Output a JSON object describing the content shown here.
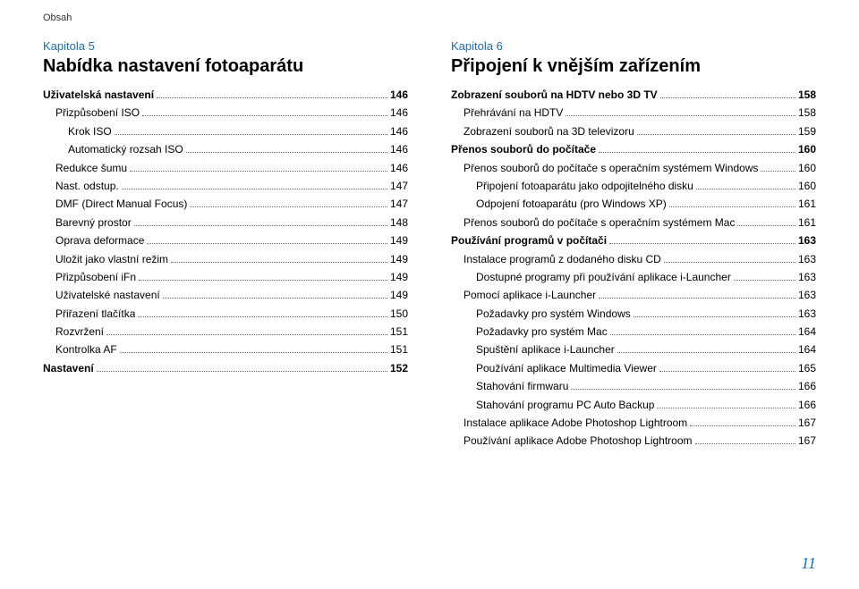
{
  "header": "Obsah",
  "pageNumber": "11",
  "colors": {
    "link": "#1a6fb0",
    "text": "#000000",
    "dots": "#666666",
    "bg": "#ffffff"
  },
  "left": {
    "chapter": "Kapitola 5",
    "title": "Nabídka nastavení fotoaparátu",
    "items": [
      {
        "label": "Uživatelská nastavení",
        "page": "146",
        "level": 0,
        "bold": true
      },
      {
        "label": "Přizpůsobení ISO",
        "page": "146",
        "level": 1
      },
      {
        "label": "Krok ISO",
        "page": "146",
        "level": 2
      },
      {
        "label": "Automatický rozsah ISO",
        "page": "146",
        "level": 2
      },
      {
        "label": "Redukce šumu",
        "page": "146",
        "level": 1
      },
      {
        "label": "Nast. odstup.",
        "page": "147",
        "level": 1
      },
      {
        "label": "DMF (Direct Manual Focus)",
        "page": "147",
        "level": 1
      },
      {
        "label": "Barevný prostor",
        "page": "148",
        "level": 1
      },
      {
        "label": "Oprava deformace",
        "page": "149",
        "level": 1
      },
      {
        "label": "Uložit jako vlastní režim",
        "page": "149",
        "level": 1
      },
      {
        "label": "Přizpůsobení iFn",
        "page": "149",
        "level": 1
      },
      {
        "label": "Uživatelské nastavení",
        "page": "149",
        "level": 1
      },
      {
        "label": "Přiřazení tlačítka",
        "page": "150",
        "level": 1
      },
      {
        "label": "Rozvržení",
        "page": "151",
        "level": 1
      },
      {
        "label": "Kontrolka AF",
        "page": "151",
        "level": 1
      },
      {
        "label": "Nastavení",
        "page": "152",
        "level": 0,
        "bold": true
      }
    ]
  },
  "right": {
    "chapter": "Kapitola 6",
    "title": "Připojení k vnějším zařízením",
    "items": [
      {
        "label": "Zobrazení souborů na HDTV nebo 3D TV",
        "page": "158",
        "level": 0,
        "bold": true
      },
      {
        "label": "Přehrávání na HDTV",
        "page": "158",
        "level": 1
      },
      {
        "label": "Zobrazení souborů na 3D televizoru",
        "page": "159",
        "level": 1
      },
      {
        "label": "Přenos souborů do počítače",
        "page": "160",
        "level": 0,
        "bold": true
      },
      {
        "label": "Přenos souborů do počítače s operačním systémem Windows",
        "page": "160",
        "level": 1
      },
      {
        "label": "Připojení fotoaparátu jako odpojitelného disku",
        "page": "160",
        "level": 2
      },
      {
        "label": "Odpojení fotoaparátu (pro Windows XP)",
        "page": "161",
        "level": 2
      },
      {
        "label": "Přenos souborů do počítače s operačním systémem Mac",
        "page": "161",
        "level": 1
      },
      {
        "label": "Používání programů v počítači",
        "page": "163",
        "level": 0,
        "bold": true
      },
      {
        "label": "Instalace programů z dodaného disku CD",
        "page": "163",
        "level": 1
      },
      {
        "label": "Dostupné programy při používání aplikace i-Launcher",
        "page": "163",
        "level": 2
      },
      {
        "label": "Pomocí aplikace i-Launcher",
        "page": "163",
        "level": 1
      },
      {
        "label": "Požadavky pro systém Windows",
        "page": "163",
        "level": 2
      },
      {
        "label": "Požadavky pro systém Mac",
        "page": "164",
        "level": 2
      },
      {
        "label": "Spuštění aplikace i-Launcher",
        "page": "164",
        "level": 2
      },
      {
        "label": "Používání aplikace Multimedia Viewer",
        "page": "165",
        "level": 2
      },
      {
        "label": "Stahování firmwaru",
        "page": "166",
        "level": 2
      },
      {
        "label": "Stahování programu PC Auto Backup",
        "page": "166",
        "level": 2
      },
      {
        "label": "Instalace aplikace Adobe Photoshop Lightroom",
        "page": "167",
        "level": 1
      },
      {
        "label": "Používání aplikace Adobe Photoshop Lightroom",
        "page": "167",
        "level": 1
      }
    ]
  }
}
